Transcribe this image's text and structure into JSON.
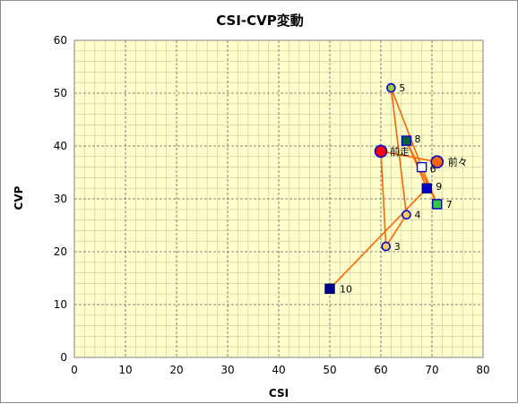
{
  "chart_data": {
    "type": "scatter",
    "title": "CSI-CVP変動",
    "xlabel": "CSI",
    "ylabel": "CVP",
    "xlim": [
      0,
      80
    ],
    "ylim": [
      0,
      60
    ],
    "xticks": [
      0,
      10,
      20,
      30,
      40,
      50,
      60,
      70,
      80
    ],
    "yticks": [
      0,
      10,
      20,
      30,
      40,
      50,
      60
    ],
    "grid": true,
    "background": "#ffffcc",
    "line_color": "#ff6600",
    "points": [
      {
        "label": "前々",
        "x": 71,
        "y": 37,
        "marker": "circle",
        "fill": "#ff6600",
        "stroke": "#0000cc",
        "size": "large"
      },
      {
        "label": "前走",
        "x": 60,
        "y": 39,
        "marker": "circle",
        "fill": "#ff0000",
        "stroke": "#0000cc",
        "size": "large"
      },
      {
        "label": "3",
        "x": 61,
        "y": 21,
        "marker": "circle",
        "fill": "#ffcc66",
        "stroke": "#0000cc",
        "size": "small"
      },
      {
        "label": "4",
        "x": 65,
        "y": 27,
        "marker": "circle",
        "fill": "#ffcc66",
        "stroke": "#0000cc",
        "size": "small"
      },
      {
        "label": "5",
        "x": 62,
        "y": 51,
        "marker": "circle",
        "fill": "#99cc33",
        "stroke": "#0000cc",
        "size": "small"
      },
      {
        "label": "6",
        "x": 68,
        "y": 36,
        "marker": "square",
        "fill": "#ffffff",
        "stroke": "#0000cc",
        "size": "small"
      },
      {
        "label": "7",
        "x": 71,
        "y": 29,
        "marker": "square",
        "fill": "#33cc33",
        "stroke": "#0000cc",
        "size": "small"
      },
      {
        "label": "8",
        "x": 65,
        "y": 41,
        "marker": "square",
        "fill": "#006633",
        "stroke": "#0000cc",
        "size": "small"
      },
      {
        "label": "9",
        "x": 69,
        "y": 32,
        "marker": "square",
        "fill": "#0000cc",
        "stroke": "#000080",
        "size": "small"
      },
      {
        "label": "10",
        "x": 50,
        "y": 13,
        "marker": "square",
        "fill": "#000099",
        "stroke": "#000066",
        "size": "small"
      }
    ]
  }
}
